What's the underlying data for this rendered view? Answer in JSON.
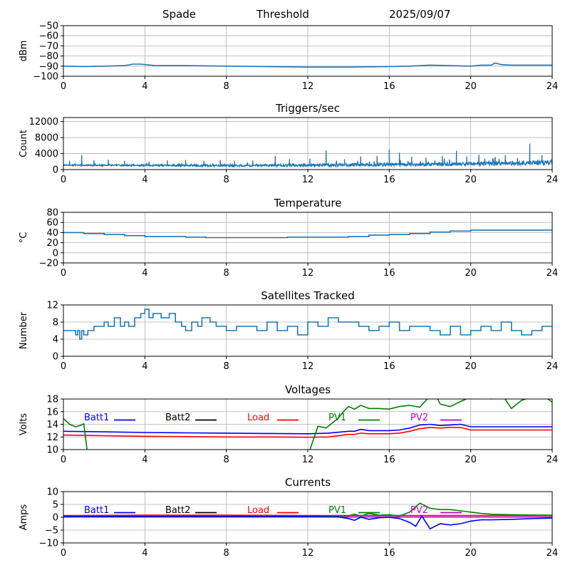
{
  "header": {
    "station": "Spade",
    "mode": "Threshold",
    "date": "2025/09/07"
  },
  "chart_data": [
    {
      "id": "dbm",
      "type": "line",
      "title": "",
      "ylabel": "dBm",
      "xlim": [
        0,
        24
      ],
      "ylim": [
        -100,
        -50
      ],
      "xticks": [
        0,
        4,
        8,
        12,
        16,
        20,
        24
      ],
      "yticks": [
        -100,
        -90,
        -80,
        -70,
        -60,
        -50
      ],
      "grid": true,
      "series": [
        {
          "color": "#1f77b4",
          "x": [
            0,
            1,
            2,
            3,
            3.4,
            3.8,
            4.5,
            6,
            8,
            10,
            12,
            14,
            16,
            17,
            18,
            19,
            20,
            20.5,
            21,
            21.2,
            21.5,
            22,
            23,
            24
          ],
          "y": [
            -90,
            -90.5,
            -90,
            -89.5,
            -88,
            -88,
            -89.5,
            -89.5,
            -90,
            -90.5,
            -91,
            -91,
            -90.5,
            -90,
            -89,
            -89.5,
            -90,
            -89,
            -89,
            -87,
            -88.5,
            -89,
            -89,
            -89
          ]
        }
      ]
    },
    {
      "id": "triggers",
      "type": "line",
      "title": "Triggers/sec",
      "ylabel": "Count",
      "xlim": [
        0,
        24
      ],
      "ylim": [
        0,
        13000
      ],
      "xticks": [
        0,
        4,
        8,
        12,
        16,
        20,
        24
      ],
      "yticks": [
        0,
        4000,
        8000,
        12000
      ],
      "grid": true,
      "baseline": [
        [
          0,
          1100
        ],
        [
          8,
          1000
        ],
        [
          12,
          1100
        ],
        [
          16,
          1200
        ],
        [
          20,
          1400
        ],
        [
          24,
          1700
        ]
      ],
      "spikes": [
        [
          0.3,
          2200
        ],
        [
          0.9,
          3600
        ],
        [
          1.5,
          2300
        ],
        [
          2.2,
          2500
        ],
        [
          3.0,
          2200
        ],
        [
          4.2,
          2000
        ],
        [
          5.1,
          2300
        ],
        [
          6.0,
          2400
        ],
        [
          6.9,
          2200
        ],
        [
          7.7,
          2400
        ],
        [
          8.4,
          2200
        ],
        [
          9.3,
          2300
        ],
        [
          10.4,
          3400
        ],
        [
          11.1,
          2600
        ],
        [
          12.1,
          2700
        ],
        [
          12.9,
          4800
        ],
        [
          13.8,
          2600
        ],
        [
          14.6,
          3300
        ],
        [
          15.4,
          3400
        ],
        [
          16.0,
          5000
        ],
        [
          16.5,
          4200
        ],
        [
          17.1,
          3200
        ],
        [
          17.8,
          3000
        ],
        [
          18.6,
          3400
        ],
        [
          19.3,
          4700
        ],
        [
          19.8,
          3300
        ],
        [
          20.4,
          3700
        ],
        [
          21.2,
          3000
        ],
        [
          21.7,
          3600
        ],
        [
          22.3,
          2900
        ],
        [
          22.9,
          6500
        ],
        [
          23.5,
          3600
        ]
      ],
      "jitter": 700,
      "color": "#1f77b4"
    },
    {
      "id": "temperature",
      "type": "line",
      "title": "Temperature",
      "ylabel": "°C",
      "xlim": [
        0,
        24
      ],
      "ylim": [
        -20,
        80
      ],
      "xticks": [
        0,
        4,
        8,
        12,
        16,
        20,
        24
      ],
      "yticks": [
        -20,
        0,
        20,
        40,
        60,
        80
      ],
      "grid": true,
      "series": [
        {
          "color": "#1f77b4",
          "x": [
            0,
            1,
            2,
            3,
            4,
            5,
            6,
            7,
            8,
            9,
            10,
            11,
            12,
            13,
            14,
            15,
            16,
            17,
            18,
            19,
            20,
            21,
            22,
            23,
            24
          ],
          "y": [
            40,
            38,
            36,
            34,
            32,
            32,
            31,
            30,
            30,
            30,
            30,
            31,
            31,
            31,
            32,
            35,
            36,
            38,
            41,
            43,
            45,
            45,
            45,
            45,
            46
          ]
        }
      ]
    },
    {
      "id": "satellites",
      "type": "line",
      "title": "Satellites Tracked",
      "ylabel": "Number",
      "xlim": [
        0,
        24
      ],
      "ylim": [
        0,
        12
      ],
      "xticks": [
        0,
        4,
        8,
        12,
        16,
        20,
        24
      ],
      "yticks": [
        0,
        4,
        8,
        12
      ],
      "grid": true,
      "series": [
        {
          "color": "#1f77b4",
          "x": [
            0,
            0.5,
            0.6,
            0.7,
            0.8,
            0.9,
            1.0,
            1.2,
            1.5,
            2.0,
            2.2,
            2.5,
            2.8,
            3.0,
            3.2,
            3.5,
            3.8,
            4.0,
            4.2,
            4.4,
            4.8,
            5.2,
            5.5,
            5.8,
            6.0,
            6.3,
            6.6,
            6.8,
            7.2,
            7.5,
            8.0,
            8.5,
            9.0,
            9.5,
            10.0,
            10.5,
            11.0,
            11.5,
            12.0,
            12.5,
            13.0,
            13.5,
            14.0,
            14.5,
            15.0,
            15.5,
            16.0,
            16.5,
            17.0,
            17.5,
            18.0,
            18.5,
            19.0,
            19.5,
            20.0,
            20.5,
            21.0,
            21.5,
            22.0,
            22.5,
            23.0,
            23.5,
            24.0
          ],
          "y": [
            6,
            6,
            5,
            6,
            4,
            6,
            5,
            6,
            7,
            8,
            7,
            9,
            7,
            8,
            7,
            9,
            10,
            11,
            9,
            10,
            9,
            10,
            8,
            7,
            6,
            8,
            7,
            9,
            8,
            7,
            6,
            7,
            7,
            6,
            8,
            6,
            7,
            5,
            8,
            7,
            9,
            8,
            8,
            7,
            6,
            7,
            8,
            6,
            7,
            7,
            6,
            5,
            7,
            5,
            6,
            7,
            6,
            8,
            6,
            5,
            6,
            7,
            7
          ]
        }
      ]
    },
    {
      "id": "voltages",
      "type": "line",
      "title": "Voltages",
      "ylabel": "Volts",
      "xlim": [
        0,
        24
      ],
      "ylim": [
        10,
        18
      ],
      "xticks": [
        0,
        4,
        8,
        12,
        16,
        20,
        24
      ],
      "yticks": [
        10,
        12,
        14,
        16,
        18
      ],
      "grid": true,
      "legend": [
        {
          "name": "Batt1",
          "color": "#0000ff"
        },
        {
          "name": "Batt2",
          "color": "#000000"
        },
        {
          "name": "Load",
          "color": "#ff0000"
        },
        {
          "name": "PV1",
          "color": "#008000"
        },
        {
          "name": "PV2",
          "color": "#c000c0"
        }
      ],
      "series": [
        {
          "name": "Batt1",
          "color": "#0000ff",
          "x": [
            0,
            2,
            4,
            6,
            8,
            10,
            12,
            13,
            14,
            14.3,
            14.6,
            15,
            15.5,
            16,
            16.5,
            17,
            17.5,
            18,
            18.5,
            19,
            19.5,
            20,
            21,
            22,
            23,
            24
          ],
          "y": [
            12.9,
            12.8,
            12.7,
            12.65,
            12.6,
            12.55,
            12.5,
            12.6,
            12.9,
            12.9,
            13.2,
            13.0,
            13.0,
            13.0,
            13.1,
            13.4,
            13.9,
            14.0,
            13.8,
            13.9,
            14.0,
            13.6,
            13.6,
            13.6,
            13.6,
            13.6
          ]
        },
        {
          "name": "Load",
          "color": "#ff0000",
          "x": [
            0,
            2,
            4,
            6,
            8,
            10,
            12,
            13,
            14,
            14.3,
            14.6,
            15,
            15.5,
            16,
            16.5,
            17,
            17.5,
            18,
            18.5,
            19,
            19.5,
            20,
            21,
            22,
            23,
            24
          ],
          "y": [
            12.3,
            12.2,
            12.1,
            12.05,
            12.0,
            12.0,
            11.95,
            12.0,
            12.4,
            12.4,
            12.6,
            12.5,
            12.5,
            12.5,
            12.6,
            12.9,
            13.3,
            13.5,
            13.4,
            13.5,
            13.5,
            13.1,
            13.1,
            13.1,
            13.1,
            13.1
          ]
        },
        {
          "name": "PV1",
          "color": "#008000",
          "x": [
            0,
            0.3,
            0.6,
            0.9,
            1.0,
            1.2,
            12.0,
            12.5,
            12.9,
            13.2,
            13.5,
            13.8,
            14.0,
            14.3,
            14.6,
            15.0,
            15.5,
            16.0,
            16.5,
            17.0,
            17.5,
            18.0,
            18.3,
            18.5,
            19.0,
            19.5,
            20.0,
            20.5,
            21.0,
            21.5,
            22.0,
            22.5,
            23.0,
            23.5,
            24.0
          ],
          "y": [
            14.9,
            14.0,
            13.6,
            13.9,
            14.1,
            9.0,
            9.0,
            13.7,
            13.4,
            14.2,
            15.0,
            16.2,
            16.8,
            16.4,
            17.0,
            16.5,
            16.5,
            16.4,
            16.8,
            17.0,
            16.7,
            18.5,
            18.5,
            17.2,
            16.8,
            17.6,
            18.3,
            18.6,
            18.0,
            18.9,
            16.5,
            17.8,
            18.3,
            18.7,
            17.5
          ]
        }
      ]
    },
    {
      "id": "currents",
      "type": "line",
      "title": "Currents",
      "ylabel": "Amps",
      "xlim": [
        0,
        24
      ],
      "ylim": [
        -10,
        10
      ],
      "xticks": [
        0,
        4,
        8,
        12,
        16,
        20,
        24
      ],
      "yticks": [
        -10,
        -5,
        0,
        5,
        10
      ],
      "grid": true,
      "legend": [
        {
          "name": "Batt1",
          "color": "#0000ff"
        },
        {
          "name": "Batt2",
          "color": "#000000"
        },
        {
          "name": "Load",
          "color": "#ff0000"
        },
        {
          "name": "PV1",
          "color": "#008000"
        },
        {
          "name": "PV2",
          "color": "#c000c0"
        }
      ],
      "series": [
        {
          "name": "PV2",
          "color": "#c000c0",
          "x": [
            0,
            24
          ],
          "y": [
            0.1,
            0.1
          ]
        },
        {
          "name": "Load",
          "color": "#ff0000",
          "x": [
            0,
            4,
            8,
            12,
            16,
            20,
            24
          ],
          "y": [
            0.7,
            0.8,
            0.8,
            0.7,
            0.7,
            0.7,
            0.7
          ]
        },
        {
          "name": "PV1",
          "color": "#008000",
          "x": [
            0,
            4,
            8,
            12,
            13,
            14,
            14.3,
            14.6,
            15,
            15.5,
            16,
            16.5,
            17,
            17.5,
            18,
            18.5,
            19,
            19.5,
            20,
            20.5,
            21,
            22,
            23,
            24
          ],
          "y": [
            0.5,
            0.5,
            0.5,
            0.5,
            0.5,
            0.6,
            1.2,
            0.5,
            1.5,
            0.8,
            1.0,
            0.5,
            2.0,
            5.5,
            3.5,
            3.0,
            3.0,
            2.5,
            2.0,
            1.5,
            1.2,
            1.0,
            0.9,
            0.8
          ]
        },
        {
          "name": "Batt1",
          "color": "#0000ff",
          "x": [
            0,
            4,
            8,
            12,
            13,
            13.5,
            14,
            14.3,
            14.6,
            15,
            15.5,
            16,
            16.5,
            17,
            17.3,
            17.6,
            18,
            18.5,
            19,
            19.5,
            20,
            20.5,
            21,
            22,
            23,
            24
          ],
          "y": [
            0.3,
            0.3,
            0.3,
            0.3,
            0.2,
            0.1,
            -0.5,
            -1.2,
            0.0,
            -0.8,
            -0.2,
            0.0,
            -0.5,
            -2.0,
            -3.5,
            0.5,
            -4.5,
            -2.5,
            -3.0,
            -2.5,
            -1.5,
            -1.0,
            -1.0,
            -0.8,
            -0.5,
            -0.3
          ]
        }
      ]
    }
  ]
}
